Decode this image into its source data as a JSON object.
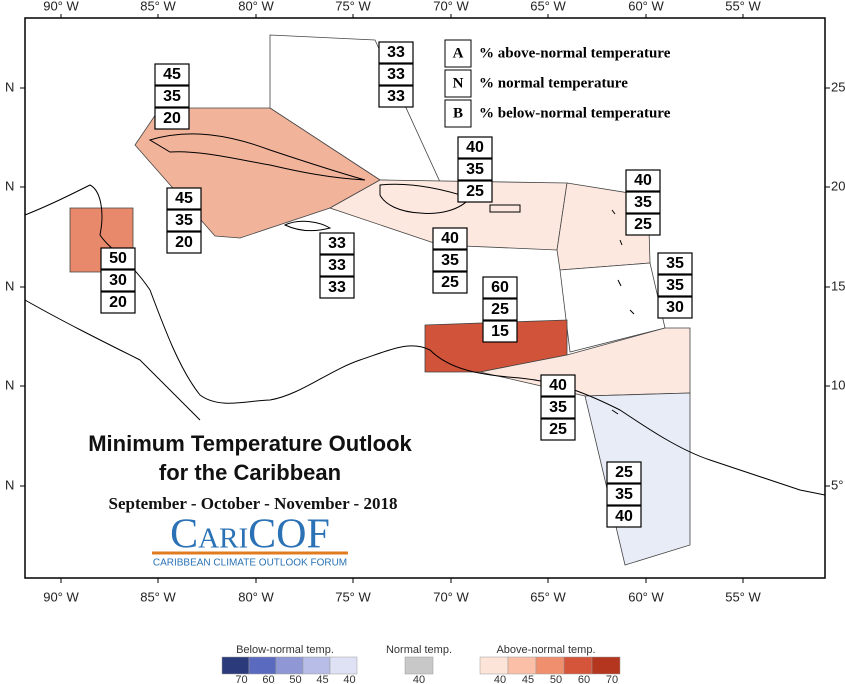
{
  "map": {
    "longitude_labels_top": [
      "90° W",
      "85° W",
      "80° W",
      "75° W",
      "70° W",
      "65° W",
      "60° W",
      "55° W"
    ],
    "longitude_labels_bottom": [
      "90° W",
      "85° W",
      "80° W",
      "75° W",
      "70° W",
      "65° W",
      "60° W",
      "55° W"
    ],
    "latitude_labels_left": [
      "N",
      "N",
      "N",
      "N",
      "N"
    ],
    "latitude_labels_right": [
      "25°",
      "20°",
      "15°",
      "10°",
      "5°"
    ]
  },
  "key": [
    {
      "letter": "A",
      "text": "% above-normal temperature"
    },
    {
      "letter": "N",
      "text": "% normal temperature"
    },
    {
      "letter": "B",
      "text": "% below-normal temperature"
    }
  ],
  "title": [
    "Minimum Temperature Outlook",
    "for the Caribbean"
  ],
  "period": "September - October - November - 2018",
  "logo": {
    "name": "CariCOF",
    "tagline": "CARIBBEAN CLIMATE OUTLOOK FORUM"
  },
  "regions": [
    {
      "values": [
        33,
        33,
        33
      ]
    },
    {
      "values": [
        45,
        35,
        20
      ]
    },
    {
      "values": [
        40,
        35,
        25
      ]
    },
    {
      "values": [
        40,
        35,
        25
      ]
    },
    {
      "values": [
        45,
        35,
        20
      ]
    },
    {
      "values": [
        33,
        33,
        33
      ]
    },
    {
      "values": [
        40,
        35,
        25
      ]
    },
    {
      "values": [
        50,
        30,
        20
      ]
    },
    {
      "values": [
        35,
        35,
        30
      ]
    },
    {
      "values": [
        60,
        25,
        15
      ]
    },
    {
      "values": [
        40,
        35,
        25
      ]
    },
    {
      "values": [
        25,
        35,
        40
      ]
    }
  ],
  "color_legend": [
    {
      "label": "Below-normal temp.",
      "ticks": [
        70,
        60,
        50,
        45,
        40
      ]
    },
    {
      "label": "Normal temp.",
      "ticks": [
        40
      ]
    },
    {
      "label": "Above-normal temp.",
      "ticks": [
        40,
        45,
        50,
        60,
        70
      ]
    }
  ]
}
